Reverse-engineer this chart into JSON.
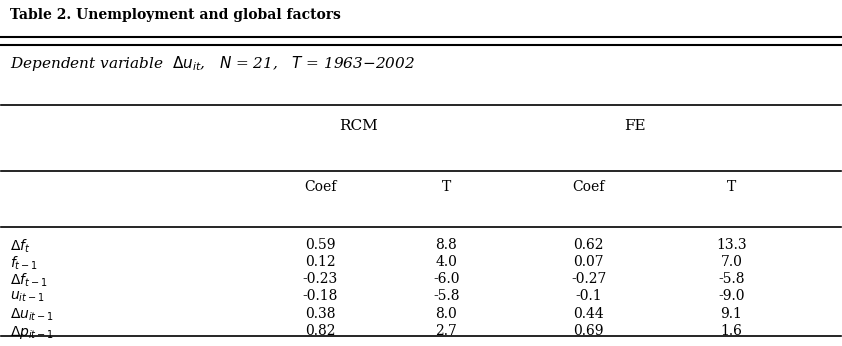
{
  "title": "Table 2. Unemployment and global factors",
  "group_headers": [
    "RCM",
    "FE"
  ],
  "col_headers": [
    "Coef",
    "T",
    "Coef",
    "T"
  ],
  "row_labels_latex": [
    "$\\Delta f_t$",
    "$f_{t-1}$",
    "$\\Delta f_{t-1}$",
    "$u_{it-1}$",
    "$\\Delta u_{it-1}$",
    "$\\Delta p_{it-1}$"
  ],
  "data": [
    [
      0.59,
      8.8,
      0.62,
      13.3
    ],
    [
      0.12,
      4.0,
      0.07,
      7.0
    ],
    [
      -0.23,
      -6.0,
      -0.27,
      -5.8
    ],
    [
      -0.18,
      -5.8,
      -0.1,
      -9.0
    ],
    [
      0.38,
      8.0,
      0.44,
      9.1
    ],
    [
      0.82,
      2.7,
      0.69,
      1.6
    ]
  ],
  "figsize": [
    8.42,
    3.46
  ],
  "dpi": 100,
  "font_size": 10,
  "title_font_size": 10,
  "subtitle_font_size": 11
}
